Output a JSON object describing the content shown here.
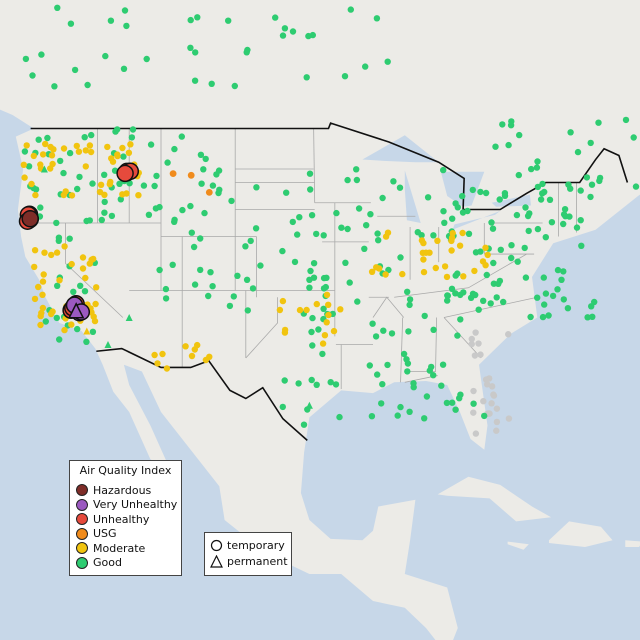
{
  "map": {
    "water_color": "#c7d7e8",
    "land_color": "#ecebe7",
    "us_land_color": "#f3f2ee",
    "state_line_color": "#a9a9a9",
    "border_color": "#111111"
  },
  "aqi_legend": {
    "title": "Air Quality Index",
    "items": [
      {
        "label": "Hazardous",
        "color": "#7e2d28"
      },
      {
        "label": "Very Unhealthy",
        "color": "#9b59c0"
      },
      {
        "label": "Unhealthy",
        "color": "#e64a3c"
      },
      {
        "label": "USG",
        "color": "#f08b1c"
      },
      {
        "label": "Moderate",
        "color": "#f1c40f"
      },
      {
        "label": "Good",
        "color": "#2ecc71"
      }
    ]
  },
  "type_legend": {
    "items": [
      {
        "label": "temporary",
        "shape": "circle"
      },
      {
        "label": "permanent",
        "shape": "triangle"
      }
    ]
  },
  "monitors": {
    "no_data_color": "#c9c9c9",
    "regions": [
      {
        "level": "Good",
        "count": 36,
        "lon": [
          -124,
          -88
        ],
        "lat": [
          52,
          58
        ]
      },
      {
        "level": "Good",
        "count": 60,
        "lon": [
          -124,
          -105
        ],
        "lat": [
          42,
          49
        ]
      },
      {
        "level": "Good",
        "count": 40,
        "lon": [
          -112,
          -95
        ],
        "lat": [
          35,
          45
        ]
      },
      {
        "level": "Good",
        "count": 80,
        "lon": [
          -97,
          -82
        ],
        "lat": [
          30,
          46
        ]
      },
      {
        "level": "Good",
        "count": 90,
        "lon": [
          -85,
          -70
        ],
        "lat": [
          35,
          45
        ]
      },
      {
        "level": "Good",
        "count": 25,
        "lon": [
          -100,
          -80
        ],
        "lat": [
          27,
          31
        ]
      },
      {
        "level": "Good",
        "count": 20,
        "lon": [
          -122,
          -117
        ],
        "lat": [
          33,
          41
        ]
      },
      {
        "level": "Good",
        "count": 30,
        "lon": [
          -80,
          -60
        ],
        "lat": [
          44,
          50
        ]
      },
      {
        "level": "Moderate",
        "count": 45,
        "lon": [
          -124,
          -113
        ],
        "lat": [
          44,
          48
        ]
      },
      {
        "level": "Moderate",
        "count": 40,
        "lon": [
          -123,
          -117
        ],
        "lat": [
          34,
          41
        ]
      },
      {
        "level": "Moderate",
        "count": 30,
        "lon": [
          -92,
          -80
        ],
        "lat": [
          38,
          41.5
        ]
      },
      {
        "level": "Moderate",
        "count": 15,
        "lon": [
          -100,
          -94
        ],
        "lat": [
          33,
          37
        ]
      },
      {
        "level": "Moderate",
        "count": 10,
        "lon": [
          -112,
          -106
        ],
        "lat": [
          31,
          33
        ]
      },
      {
        "level": "Unhealthy",
        "count": 6,
        "lon": [
          -123.6,
          -123
        ],
        "lat": [
          42,
          42.7
        ]
      },
      {
        "level": "Unhealthy",
        "count": 3,
        "lon": [
          -119.5,
          -119
        ],
        "lat": [
          35.5,
          36.5
        ]
      },
      {
        "level": "Unhealthy",
        "count": 4,
        "lon": [
          -114.5,
          -113.5
        ],
        "lat": [
          45.5,
          46
        ]
      },
      {
        "level": "Very Unhealthy",
        "count": 3,
        "lon": [
          -119.2,
          -118.5
        ],
        "lat": [
          35.3,
          36
        ]
      },
      {
        "level": "USG",
        "count": 3,
        "lon": [
          -110,
          -104
        ],
        "lat": [
          44,
          46
        ]
      },
      {
        "level": "Hazardous",
        "count": 1,
        "lon": [
          -123.4,
          -123.3
        ],
        "lat": [
          42.3,
          42.4
        ]
      }
    ],
    "permanent_sites": [
      {
        "level": "Very Unhealthy",
        "lon": -119,
        "lat": 35.5
      },
      {
        "level": "Good",
        "lon": -114,
        "lat": 35
      },
      {
        "level": "Good",
        "lon": -97,
        "lat": 28.5
      },
      {
        "level": "Good",
        "lon": -116,
        "lat": 33
      },
      {
        "level": "Good",
        "lon": -122,
        "lat": 46
      },
      {
        "level": "Moderate",
        "lon": -118,
        "lat": 34
      }
    ]
  }
}
